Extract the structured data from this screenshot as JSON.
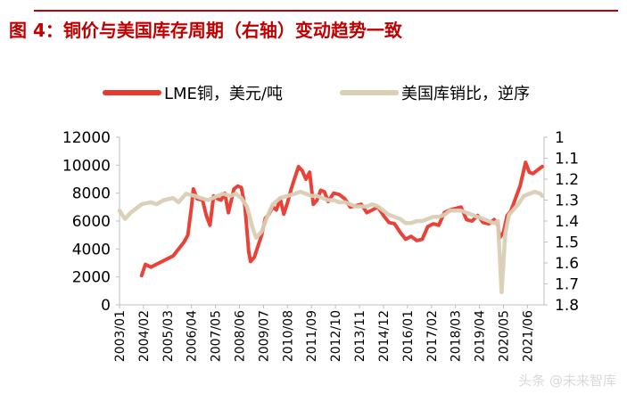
{
  "title": "图 4：铜价与美国库存周期（右轴）变动趋势一致",
  "watermark": "头条 @未来智库",
  "chart_data": {
    "type": "line",
    "grid": false,
    "legend_position": "top",
    "left_axis": {
      "range": [
        0,
        12000
      ],
      "ticks": [
        "0",
        "2000",
        "4000",
        "6000",
        "8000",
        "10000",
        "12000"
      ]
    },
    "right_axis": {
      "range": [
        1,
        1.8
      ],
      "reversed": true,
      "ticks": [
        "1",
        "1.1",
        "1.2",
        "1.3",
        "1.4",
        "1.5",
        "1.6",
        "1.7",
        "1.8"
      ]
    },
    "x_tick_labels": [
      "2003/01",
      "2004/02",
      "2005/03",
      "2006/04",
      "2007/05",
      "2008/06",
      "2009/07",
      "2010/08",
      "2011/09",
      "2012/10",
      "2013/11",
      "2014/12",
      "2016/01",
      "2017/02",
      "2018/03",
      "2019/04",
      "2020/05",
      "2021/06"
    ],
    "series": [
      {
        "name": "LME铜，美元/吨",
        "color": "#e8392e",
        "axis": "left",
        "points": [
          [
            "2004/01",
            2100
          ],
          [
            "2004/03",
            2900
          ],
          [
            "2004/06",
            2700
          ],
          [
            "2004/12",
            3100
          ],
          [
            "2005/06",
            3500
          ],
          [
            "2005/12",
            4500
          ],
          [
            "2006/02",
            5000
          ],
          [
            "2006/04",
            7000
          ],
          [
            "2006/05",
            8300
          ],
          [
            "2006/07",
            7600
          ],
          [
            "2006/10",
            7500
          ],
          [
            "2006/12",
            6400
          ],
          [
            "2007/02",
            5700
          ],
          [
            "2007/04",
            7800
          ],
          [
            "2007/06",
            7600
          ],
          [
            "2007/08",
            7500
          ],
          [
            "2007/10",
            8000
          ],
          [
            "2007/12",
            6600
          ],
          [
            "2008/03",
            8300
          ],
          [
            "2008/05",
            8500
          ],
          [
            "2008/07",
            8400
          ],
          [
            "2008/09",
            7000
          ],
          [
            "2008/11",
            3800
          ],
          [
            "2008/12",
            3100
          ],
          [
            "2009/02",
            3400
          ],
          [
            "2009/04",
            4200
          ],
          [
            "2009/06",
            5000
          ],
          [
            "2009/08",
            6200
          ],
          [
            "2009/10",
            6500
          ],
          [
            "2009/12",
            7000
          ],
          [
            "2010/02",
            6800
          ],
          [
            "2010/04",
            7600
          ],
          [
            "2010/06",
            6500
          ],
          [
            "2010/08",
            7300
          ],
          [
            "2010/10",
            8300
          ],
          [
            "2010/12",
            9100
          ],
          [
            "2011/02",
            9900
          ],
          [
            "2011/04",
            9600
          ],
          [
            "2011/06",
            9000
          ],
          [
            "2011/08",
            9500
          ],
          [
            "2011/10",
            7200
          ],
          [
            "2011/12",
            7500
          ],
          [
            "2012/02",
            8200
          ],
          [
            "2012/04",
            8100
          ],
          [
            "2012/06",
            7400
          ],
          [
            "2012/09",
            8000
          ],
          [
            "2012/12",
            7900
          ],
          [
            "2013/03",
            7600
          ],
          [
            "2013/06",
            7000
          ],
          [
            "2013/09",
            7100
          ],
          [
            "2013/12",
            7200
          ],
          [
            "2014/03",
            6600
          ],
          [
            "2014/06",
            6800
          ],
          [
            "2014/09",
            7000
          ],
          [
            "2014/12",
            6400
          ],
          [
            "2015/03",
            5900
          ],
          [
            "2015/06",
            5800
          ],
          [
            "2015/09",
            5200
          ],
          [
            "2015/12",
            4700
          ],
          [
            "2016/03",
            4900
          ],
          [
            "2016/06",
            4600
          ],
          [
            "2016/09",
            4700
          ],
          [
            "2016/12",
            5600
          ],
          [
            "2017/03",
            5800
          ],
          [
            "2017/06",
            5700
          ],
          [
            "2017/09",
            6600
          ],
          [
            "2017/12",
            6800
          ],
          [
            "2018/03",
            6900
          ],
          [
            "2018/06",
            7000
          ],
          [
            "2018/09",
            6100
          ],
          [
            "2018/12",
            6000
          ],
          [
            "2019/03",
            6400
          ],
          [
            "2019/06",
            5900
          ],
          [
            "2019/09",
            5800
          ],
          [
            "2019/12",
            6100
          ],
          [
            "2020/02",
            5700
          ],
          [
            "2020/03",
            4800
          ],
          [
            "2020/05",
            5200
          ],
          [
            "2020/07",
            6400
          ],
          [
            "2020/09",
            6700
          ],
          [
            "2020/12",
            7800
          ],
          [
            "2021/02",
            8500
          ],
          [
            "2021/05",
            10200
          ],
          [
            "2021/07",
            9500
          ],
          [
            "2021/09",
            9400
          ],
          [
            "2021/12",
            9700
          ],
          [
            "2022/02",
            9900
          ]
        ]
      },
      {
        "name": "美国库销比，逆序",
        "color": "#d9cfb4",
        "axis": "right",
        "points": [
          [
            "2003/01",
            1.35
          ],
          [
            "2003/04",
            1.39
          ],
          [
            "2003/07",
            1.36
          ],
          [
            "2003/10",
            1.34
          ],
          [
            "2004/01",
            1.32
          ],
          [
            "2004/06",
            1.31
          ],
          [
            "2004/09",
            1.32
          ],
          [
            "2005/01",
            1.3
          ],
          [
            "2005/06",
            1.29
          ],
          [
            "2005/09",
            1.31
          ],
          [
            "2006/01",
            1.27
          ],
          [
            "2006/06",
            1.28
          ],
          [
            "2006/09",
            1.29
          ],
          [
            "2007/01",
            1.3
          ],
          [
            "2007/06",
            1.28
          ],
          [
            "2007/09",
            1.27
          ],
          [
            "2008/01",
            1.28
          ],
          [
            "2008/04",
            1.27
          ],
          [
            "2008/07",
            1.29
          ],
          [
            "2008/10",
            1.33
          ],
          [
            "2009/01",
            1.43
          ],
          [
            "2009/03",
            1.48
          ],
          [
            "2009/06",
            1.45
          ],
          [
            "2009/09",
            1.38
          ],
          [
            "2009/12",
            1.32
          ],
          [
            "2010/04",
            1.29
          ],
          [
            "2010/08",
            1.28
          ],
          [
            "2010/12",
            1.27
          ],
          [
            "2011/03",
            1.26
          ],
          [
            "2011/06",
            1.27
          ],
          [
            "2011/09",
            1.28
          ],
          [
            "2011/12",
            1.28
          ],
          [
            "2012/03",
            1.29
          ],
          [
            "2012/06",
            1.3
          ],
          [
            "2012/09",
            1.3
          ],
          [
            "2012/12",
            1.31
          ],
          [
            "2013/03",
            1.31
          ],
          [
            "2013/06",
            1.32
          ],
          [
            "2013/09",
            1.33
          ],
          [
            "2013/12",
            1.33
          ],
          [
            "2014/03",
            1.33
          ],
          [
            "2014/06",
            1.32
          ],
          [
            "2014/09",
            1.33
          ],
          [
            "2014/12",
            1.35
          ],
          [
            "2015/03",
            1.37
          ],
          [
            "2015/06",
            1.38
          ],
          [
            "2015/09",
            1.39
          ],
          [
            "2015/12",
            1.41
          ],
          [
            "2016/03",
            1.41
          ],
          [
            "2016/06",
            1.4
          ],
          [
            "2016/09",
            1.4
          ],
          [
            "2016/12",
            1.39
          ],
          [
            "2017/03",
            1.38
          ],
          [
            "2017/06",
            1.38
          ],
          [
            "2017/09",
            1.37
          ],
          [
            "2017/12",
            1.35
          ],
          [
            "2018/03",
            1.35
          ],
          [
            "2018/06",
            1.35
          ],
          [
            "2018/09",
            1.36
          ],
          [
            "2018/12",
            1.37
          ],
          [
            "2019/03",
            1.38
          ],
          [
            "2019/06",
            1.39
          ],
          [
            "2019/09",
            1.4
          ],
          [
            "2019/12",
            1.41
          ],
          [
            "2020/02",
            1.4
          ],
          [
            "2020/04",
            1.74
          ],
          [
            "2020/06",
            1.46
          ],
          [
            "2020/08",
            1.37
          ],
          [
            "2020/10",
            1.35
          ],
          [
            "2021/01",
            1.32
          ],
          [
            "2021/04",
            1.28
          ],
          [
            "2021/07",
            1.27
          ],
          [
            "2021/10",
            1.26
          ],
          [
            "2022/01",
            1.27
          ],
          [
            "2022/02",
            1.28
          ]
        ]
      }
    ]
  }
}
